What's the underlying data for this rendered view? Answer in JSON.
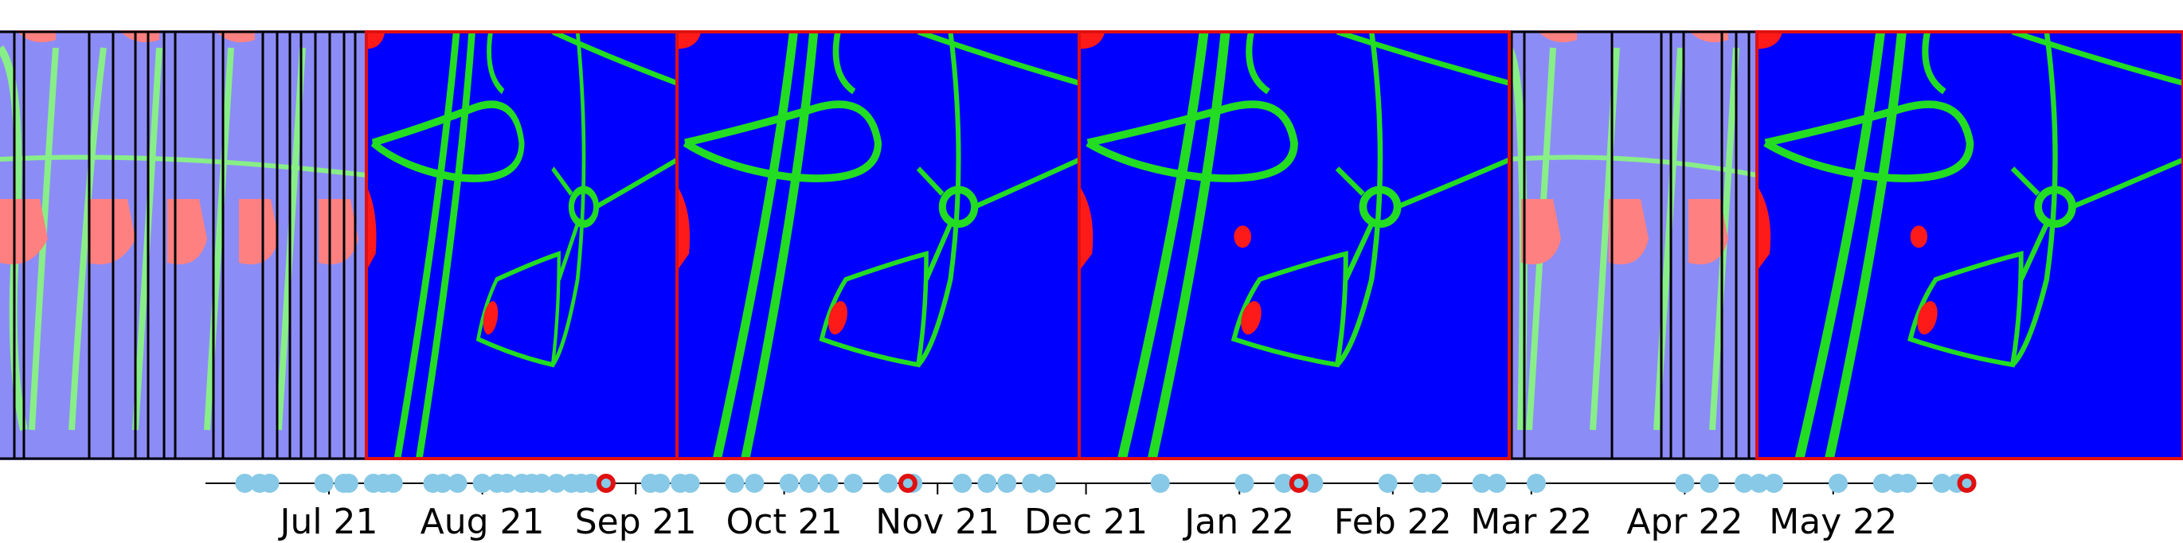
{
  "figure": {
    "description_free": true,
    "colors": {
      "background_class": "#0000ff",
      "path_class": "#22dd22",
      "object_class": "#ff1a1a",
      "faded_background": "#8c8cf7",
      "faded_path": "#88ee88",
      "faded_object": "#ff8080",
      "selected_frame": "#e01010",
      "unselected_frame": "#000000",
      "timeline_dot": "#87c9e6",
      "selected_marker_ring": "#e01010"
    },
    "timeline": {
      "months": [
        "Jul 21",
        "Aug 21",
        "Sep 21",
        "Oct 21",
        "Nov 21",
        "Dec 21",
        "Jan 22",
        "Feb 22",
        "Mar 22",
        "Apr 22",
        "May 22"
      ],
      "observation_dates": [
        "2021-06-14",
        "2021-06-17",
        "2021-06-19",
        "2021-06-30",
        "2021-07-04",
        "2021-07-05",
        "2021-07-10",
        "2021-07-12",
        "2021-07-14",
        "2021-07-22",
        "2021-07-24",
        "2021-07-27",
        "2021-08-01",
        "2021-08-04",
        "2021-08-06",
        "2021-08-09",
        "2021-08-11",
        "2021-08-13",
        "2021-08-16",
        "2021-08-19",
        "2021-08-21",
        "2021-08-23",
        "2021-09-04",
        "2021-09-06",
        "2021-09-10",
        "2021-09-12",
        "2021-09-21",
        "2021-09-25",
        "2021-10-02",
        "2021-10-06",
        "2021-10-10",
        "2021-10-15",
        "2021-10-22",
        "2021-10-27",
        "2021-11-06",
        "2021-11-11",
        "2021-11-15",
        "2021-11-20",
        "2021-11-23",
        "2021-12-16",
        "2022-01-02",
        "2022-01-10",
        "2022-01-16",
        "2022-01-31",
        "2022-02-07",
        "2022-02-09",
        "2022-02-19",
        "2022-02-22",
        "2022-03-02",
        "2022-04-01",
        "2022-04-06",
        "2022-04-13",
        "2022-04-16",
        "2022-04-19",
        "2022-05-02",
        "2022-05-11",
        "2022-05-14",
        "2022-05-16",
        "2022-05-23",
        "2022-05-26"
      ],
      "selected_dates": [
        "2021-08-26",
        "2021-10-26",
        "2022-01-13",
        "2022-05-28"
      ]
    },
    "frames": [
      {
        "kind": "thumbnail",
        "selected": false
      },
      {
        "kind": "thumbnail",
        "selected": false
      },
      {
        "kind": "thumbnail",
        "selected": false
      },
      {
        "kind": "thumbnail",
        "selected": false
      },
      {
        "kind": "thumbnail",
        "selected": false
      },
      {
        "kind": "thumbnail",
        "selected": false
      },
      {
        "kind": "thumbnail",
        "selected": false
      },
      {
        "kind": "thumbnail",
        "selected": false
      },
      {
        "kind": "thumbnail",
        "selected": false
      },
      {
        "kind": "thumbnail",
        "selected": false
      },
      {
        "kind": "thumbnail",
        "selected": false
      },
      {
        "kind": "thumbnail",
        "selected": false
      },
      {
        "kind": "map",
        "selected": true,
        "variant": "a"
      },
      {
        "kind": "map",
        "selected": true,
        "variant": "b"
      },
      {
        "kind": "map",
        "selected": true,
        "variant": "c"
      },
      {
        "kind": "thumbnail",
        "selected": false
      },
      {
        "kind": "thumbnail",
        "selected": false
      },
      {
        "kind": "thumbnail",
        "selected": false
      },
      {
        "kind": "thumbnail",
        "selected": false
      },
      {
        "kind": "thumbnail",
        "selected": false
      },
      {
        "kind": "thumbnail",
        "selected": false
      },
      {
        "kind": "map",
        "selected": true,
        "variant": "d"
      }
    ]
  }
}
